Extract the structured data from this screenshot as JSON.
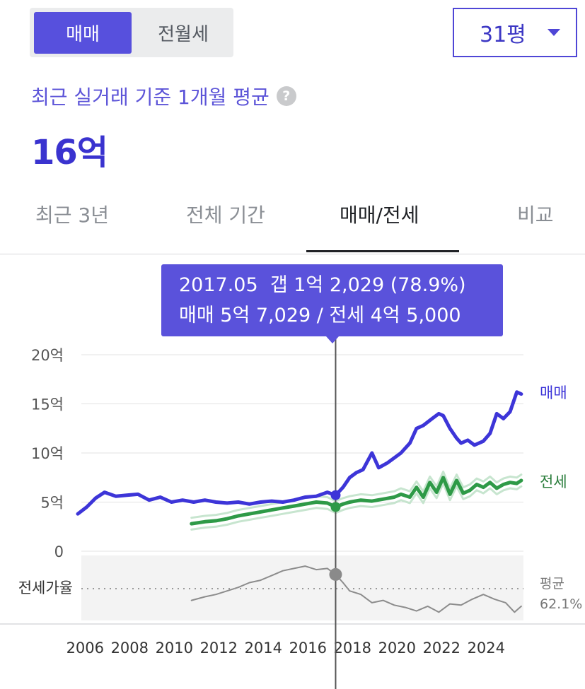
{
  "toggle": {
    "active": "매매",
    "inactive": "전월세"
  },
  "size_select": {
    "value": "31평"
  },
  "summary": {
    "label": "최근 실거래 기준 1개월 평균",
    "help": "?",
    "price": "16억"
  },
  "tabs": [
    {
      "label": "최근 3년",
      "active": false
    },
    {
      "label": "전체 기간",
      "active": false
    },
    {
      "label": "매매/전세",
      "active": true
    },
    {
      "label": "비교",
      "active": false
    }
  ],
  "tooltip": {
    "line1": "2017.05  갭 1억 2,029 (78.9%)",
    "line2": "매매 5억 7,029 / 전세 4억 5,000"
  },
  "chart_data": {
    "type": "line",
    "x_ticks": [
      "2006",
      "2008",
      "2010",
      "2012",
      "2014",
      "2016",
      "2018",
      "2020",
      "2022",
      "2024"
    ],
    "y_ticks": [
      {
        "value": 0,
        "label": "0"
      },
      {
        "value": 5,
        "label": "5억"
      },
      {
        "value": 10,
        "label": "10억"
      },
      {
        "value": 15,
        "label": "15억"
      },
      {
        "value": 20,
        "label": "20억"
      }
    ],
    "ylim": [
      0,
      20
    ],
    "xlim": [
      2005.8,
      2025.8
    ],
    "colors": {
      "sale": "#3d35d8",
      "jeonse": "#2e9a47",
      "ratio": "#8c8c8c",
      "tooltip": "#5a52db"
    },
    "series": [
      {
        "name": "매매",
        "x": [
          2005.8,
          2006.2,
          2006.6,
          2007.0,
          2007.5,
          2008.0,
          2008.5,
          2009.0,
          2009.5,
          2010.0,
          2010.5,
          2011.0,
          2011.5,
          2012.0,
          2012.5,
          2013.0,
          2013.5,
          2014.0,
          2014.5,
          2015.0,
          2015.5,
          2016.0,
          2016.5,
          2017.0,
          2017.37,
          2017.7,
          2018.0,
          2018.3,
          2018.6,
          2019.0,
          2019.3,
          2019.7,
          2020.0,
          2020.3,
          2020.7,
          2021.0,
          2021.3,
          2021.7,
          2022.0,
          2022.2,
          2022.5,
          2022.8,
          2023.0,
          2023.3,
          2023.6,
          2024.0,
          2024.3,
          2024.6,
          2024.9,
          2025.2,
          2025.5,
          2025.7
        ],
        "values": [
          3.8,
          4.5,
          5.4,
          6.0,
          5.6,
          5.7,
          5.8,
          5.2,
          5.5,
          5.0,
          5.2,
          5.0,
          5.2,
          5.0,
          4.9,
          5.0,
          4.8,
          5.0,
          5.1,
          5.0,
          5.2,
          5.5,
          5.6,
          6.0,
          5.7,
          6.5,
          7.5,
          8.0,
          8.3,
          10.0,
          8.5,
          9.0,
          9.5,
          10.0,
          11.0,
          12.5,
          12.8,
          13.5,
          14.0,
          13.8,
          12.5,
          11.5,
          11.0,
          11.3,
          10.8,
          11.2,
          12.0,
          14.0,
          13.5,
          14.2,
          16.2,
          16.0
        ]
      },
      {
        "name": "전세",
        "x": [
          2010.9,
          2011.5,
          2012.0,
          2012.5,
          2013.0,
          2013.5,
          2014.0,
          2014.5,
          2015.0,
          2015.5,
          2016.0,
          2016.5,
          2017.0,
          2017.37,
          2017.7,
          2018.0,
          2018.5,
          2019.0,
          2019.5,
          2020.0,
          2020.3,
          2020.7,
          2021.0,
          2021.3,
          2021.6,
          2021.9,
          2022.2,
          2022.5,
          2022.8,
          2023.1,
          2023.4,
          2023.7,
          2024.0,
          2024.3,
          2024.6,
          2024.9,
          2025.2,
          2025.5,
          2025.7
        ],
        "values": [
          2.8,
          3.0,
          3.1,
          3.3,
          3.6,
          3.8,
          4.0,
          4.2,
          4.4,
          4.6,
          4.8,
          5.0,
          4.9,
          4.5,
          4.8,
          5.0,
          5.2,
          5.1,
          5.3,
          5.5,
          5.8,
          5.5,
          6.5,
          5.5,
          7.0,
          6.0,
          7.5,
          5.8,
          7.2,
          5.9,
          6.2,
          6.8,
          6.5,
          7.0,
          6.4,
          6.8,
          7.0,
          6.9,
          7.2
        ]
      },
      {
        "name": "전세가율",
        "x": [
          2010.9,
          2011.5,
          2012.0,
          2012.5,
          2013.0,
          2013.5,
          2014.0,
          2014.5,
          2015.0,
          2015.5,
          2016.0,
          2016.5,
          2017.0,
          2017.37,
          2017.7,
          2018.0,
          2018.5,
          2019.0,
          2019.5,
          2020.0,
          2020.5,
          2021.0,
          2021.5,
          2022.0,
          2022.5,
          2023.0,
          2023.5,
          2024.0,
          2024.5,
          2025.0,
          2025.4,
          2025.7
        ],
        "values": [
          57,
          60,
          62,
          65,
          68,
          72,
          74,
          78,
          82,
          84,
          86,
          83,
          84,
          78.9,
          72,
          65,
          62,
          55,
          57,
          53,
          51,
          48,
          52,
          47,
          54,
          53,
          58,
          62,
          58,
          55,
          47,
          52
        ]
      }
    ],
    "ratio_average": {
      "label": "평균",
      "value": "62.1%"
    },
    "ratio_label": "전세가율",
    "series_labels": {
      "sale": "매매",
      "jeonse": "전세"
    },
    "highlight": {
      "x": 2017.37,
      "sale": 5.7029,
      "jeonse": 4.5,
      "ratio": 78.9
    }
  }
}
